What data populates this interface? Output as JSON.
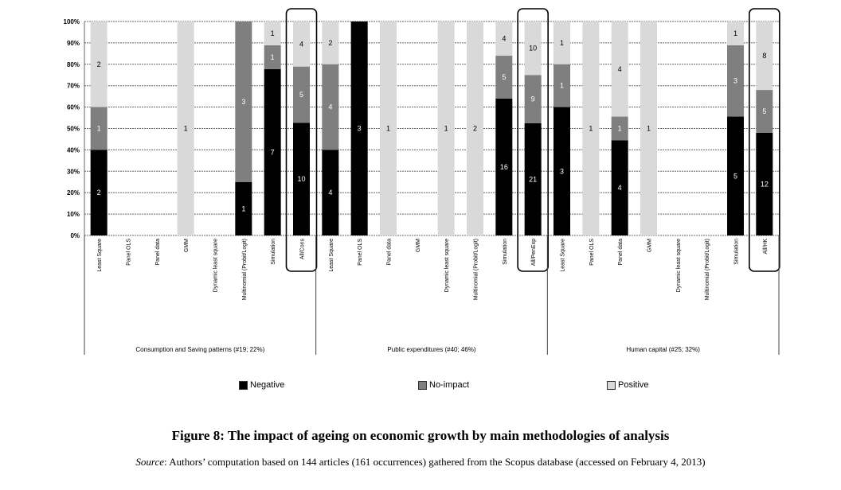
{
  "figure": {
    "title": "Figure 8: The impact of ageing on economic growth by main methodologies of analysis",
    "source_label": "Source",
    "source_text": ": Authors’ computation based on 144 articles (161 occurrences) gathered from the Scopus database (accessed on February 4, 2013)"
  },
  "colors": {
    "Negative": "#000000",
    "No-impact": "#7f7f7f",
    "Positive": "#d9d9d9",
    "grid": "#666666"
  },
  "legend": [
    {
      "name": "Negative",
      "color": "#000000"
    },
    {
      "name": "No-impact",
      "color": "#7f7f7f"
    },
    {
      "name": "Positive",
      "color": "#d9d9d9"
    }
  ],
  "chart_data": {
    "type": "bar",
    "stacked": "percent",
    "ylim": [
      0,
      100
    ],
    "yticks": [
      "0%",
      "10%",
      "20%",
      "30%",
      "40%",
      "50%",
      "60%",
      "70%",
      "80%",
      "90%",
      "100%"
    ],
    "series_names": [
      "Negative",
      "No-impact",
      "Positive"
    ],
    "groups": [
      {
        "label": "Consumption and Saving patterns (#19; 22%)",
        "categories": [
          {
            "label": "Least Square",
            "values": [
              2,
              1,
              2
            ]
          },
          {
            "label": "Panel OLS",
            "values": [
              0,
              0,
              0
            ]
          },
          {
            "label": "Panel data",
            "values": [
              0,
              0,
              0
            ]
          },
          {
            "label": "GMM",
            "values": [
              0,
              0,
              1
            ]
          },
          {
            "label": "Dynamic least square",
            "values": [
              0,
              0,
              0
            ]
          },
          {
            "label": "Multinomial (Probit/Logit)",
            "values": [
              1,
              3,
              0
            ]
          },
          {
            "label": "Simulation",
            "values": [
              7,
              1,
              1
            ]
          },
          {
            "label": "All/Cons",
            "values": [
              10,
              5,
              4
            ],
            "highlight": true
          }
        ]
      },
      {
        "label": "Public expenditures (#40; 46%)",
        "categories": [
          {
            "label": "Least Square",
            "values": [
              4,
              4,
              2
            ]
          },
          {
            "label": "Panel OLS",
            "values": [
              3,
              0,
              0
            ]
          },
          {
            "label": "Panel data",
            "values": [
              0,
              0,
              1
            ]
          },
          {
            "label": "GMM",
            "values": [
              0,
              0,
              0
            ]
          },
          {
            "label": "Dynamic least square",
            "values": [
              0,
              0,
              1
            ]
          },
          {
            "label": "Multinomial (Probit/Logit)",
            "values": [
              0,
              0,
              2
            ]
          },
          {
            "label": "Simulation",
            "values": [
              16,
              5,
              4
            ]
          },
          {
            "label": "All/PenExp",
            "values": [
              21,
              9,
              10
            ],
            "highlight": true
          }
        ]
      },
      {
        "label": "Human capital (#25; 32%)",
        "categories": [
          {
            "label": "Least Square",
            "values": [
              3,
              1,
              1
            ]
          },
          {
            "label": "Panel OLS",
            "values": [
              0,
              0,
              1
            ]
          },
          {
            "label": "Panel data",
            "values": [
              4,
              1,
              4
            ]
          },
          {
            "label": "GMM",
            "values": [
              0,
              0,
              1
            ]
          },
          {
            "label": "Dynamic least square",
            "values": [
              0,
              0,
              0
            ]
          },
          {
            "label": "Multinomial (Probit/Logit)",
            "values": [
              0,
              0,
              0
            ]
          },
          {
            "label": "Simulation",
            "values": [
              5,
              3,
              1
            ]
          },
          {
            "label": "All/HK",
            "values": [
              12,
              5,
              8
            ],
            "highlight": true
          }
        ]
      }
    ]
  }
}
